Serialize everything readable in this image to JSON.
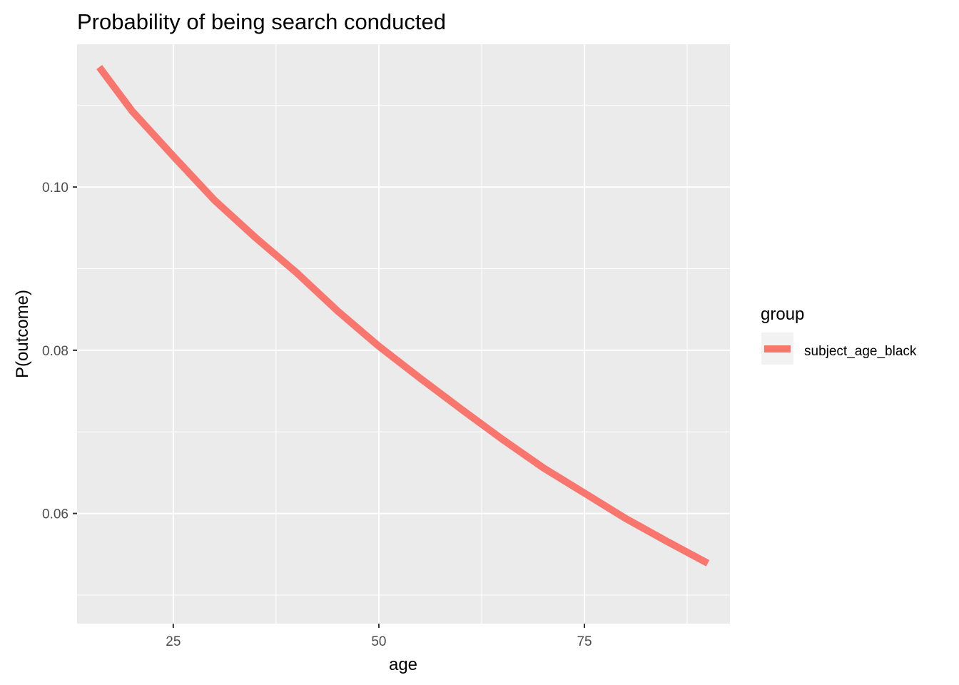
{
  "chart_data": {
    "type": "line",
    "title": "Probability of being search conducted",
    "xlabel": "age",
    "ylabel": "P(outcome)",
    "xlim": [
      13.3,
      92.7
    ],
    "ylim": [
      0.0465,
      0.1175
    ],
    "x_major_ticks": [
      25,
      50,
      75
    ],
    "x_tick_labels": [
      "25",
      "50",
      "75"
    ],
    "x_minor_ticks": [
      12.5,
      37.5,
      62.5,
      87.5
    ],
    "y_major_ticks": [
      0.06,
      0.08,
      0.1
    ],
    "y_tick_labels": [
      "0.06",
      "0.08",
      "0.10"
    ],
    "y_minor_ticks": [
      0.05,
      0.07,
      0.09,
      0.11
    ],
    "grid": true,
    "legend": {
      "title": "group",
      "position": "right"
    },
    "series": [
      {
        "name": "subject_age_black",
        "color": "#F8766D",
        "x": [
          16,
          20,
          25,
          30,
          35,
          40,
          45,
          50,
          55,
          60,
          65,
          70,
          75,
          80,
          85,
          90
        ],
        "y": [
          0.1147,
          0.1093,
          0.1038,
          0.0984,
          0.0938,
          0.0895,
          0.0848,
          0.0805,
          0.0766,
          0.0728,
          0.0691,
          0.0656,
          0.0625,
          0.0594,
          0.0566,
          0.0539
        ]
      }
    ]
  }
}
